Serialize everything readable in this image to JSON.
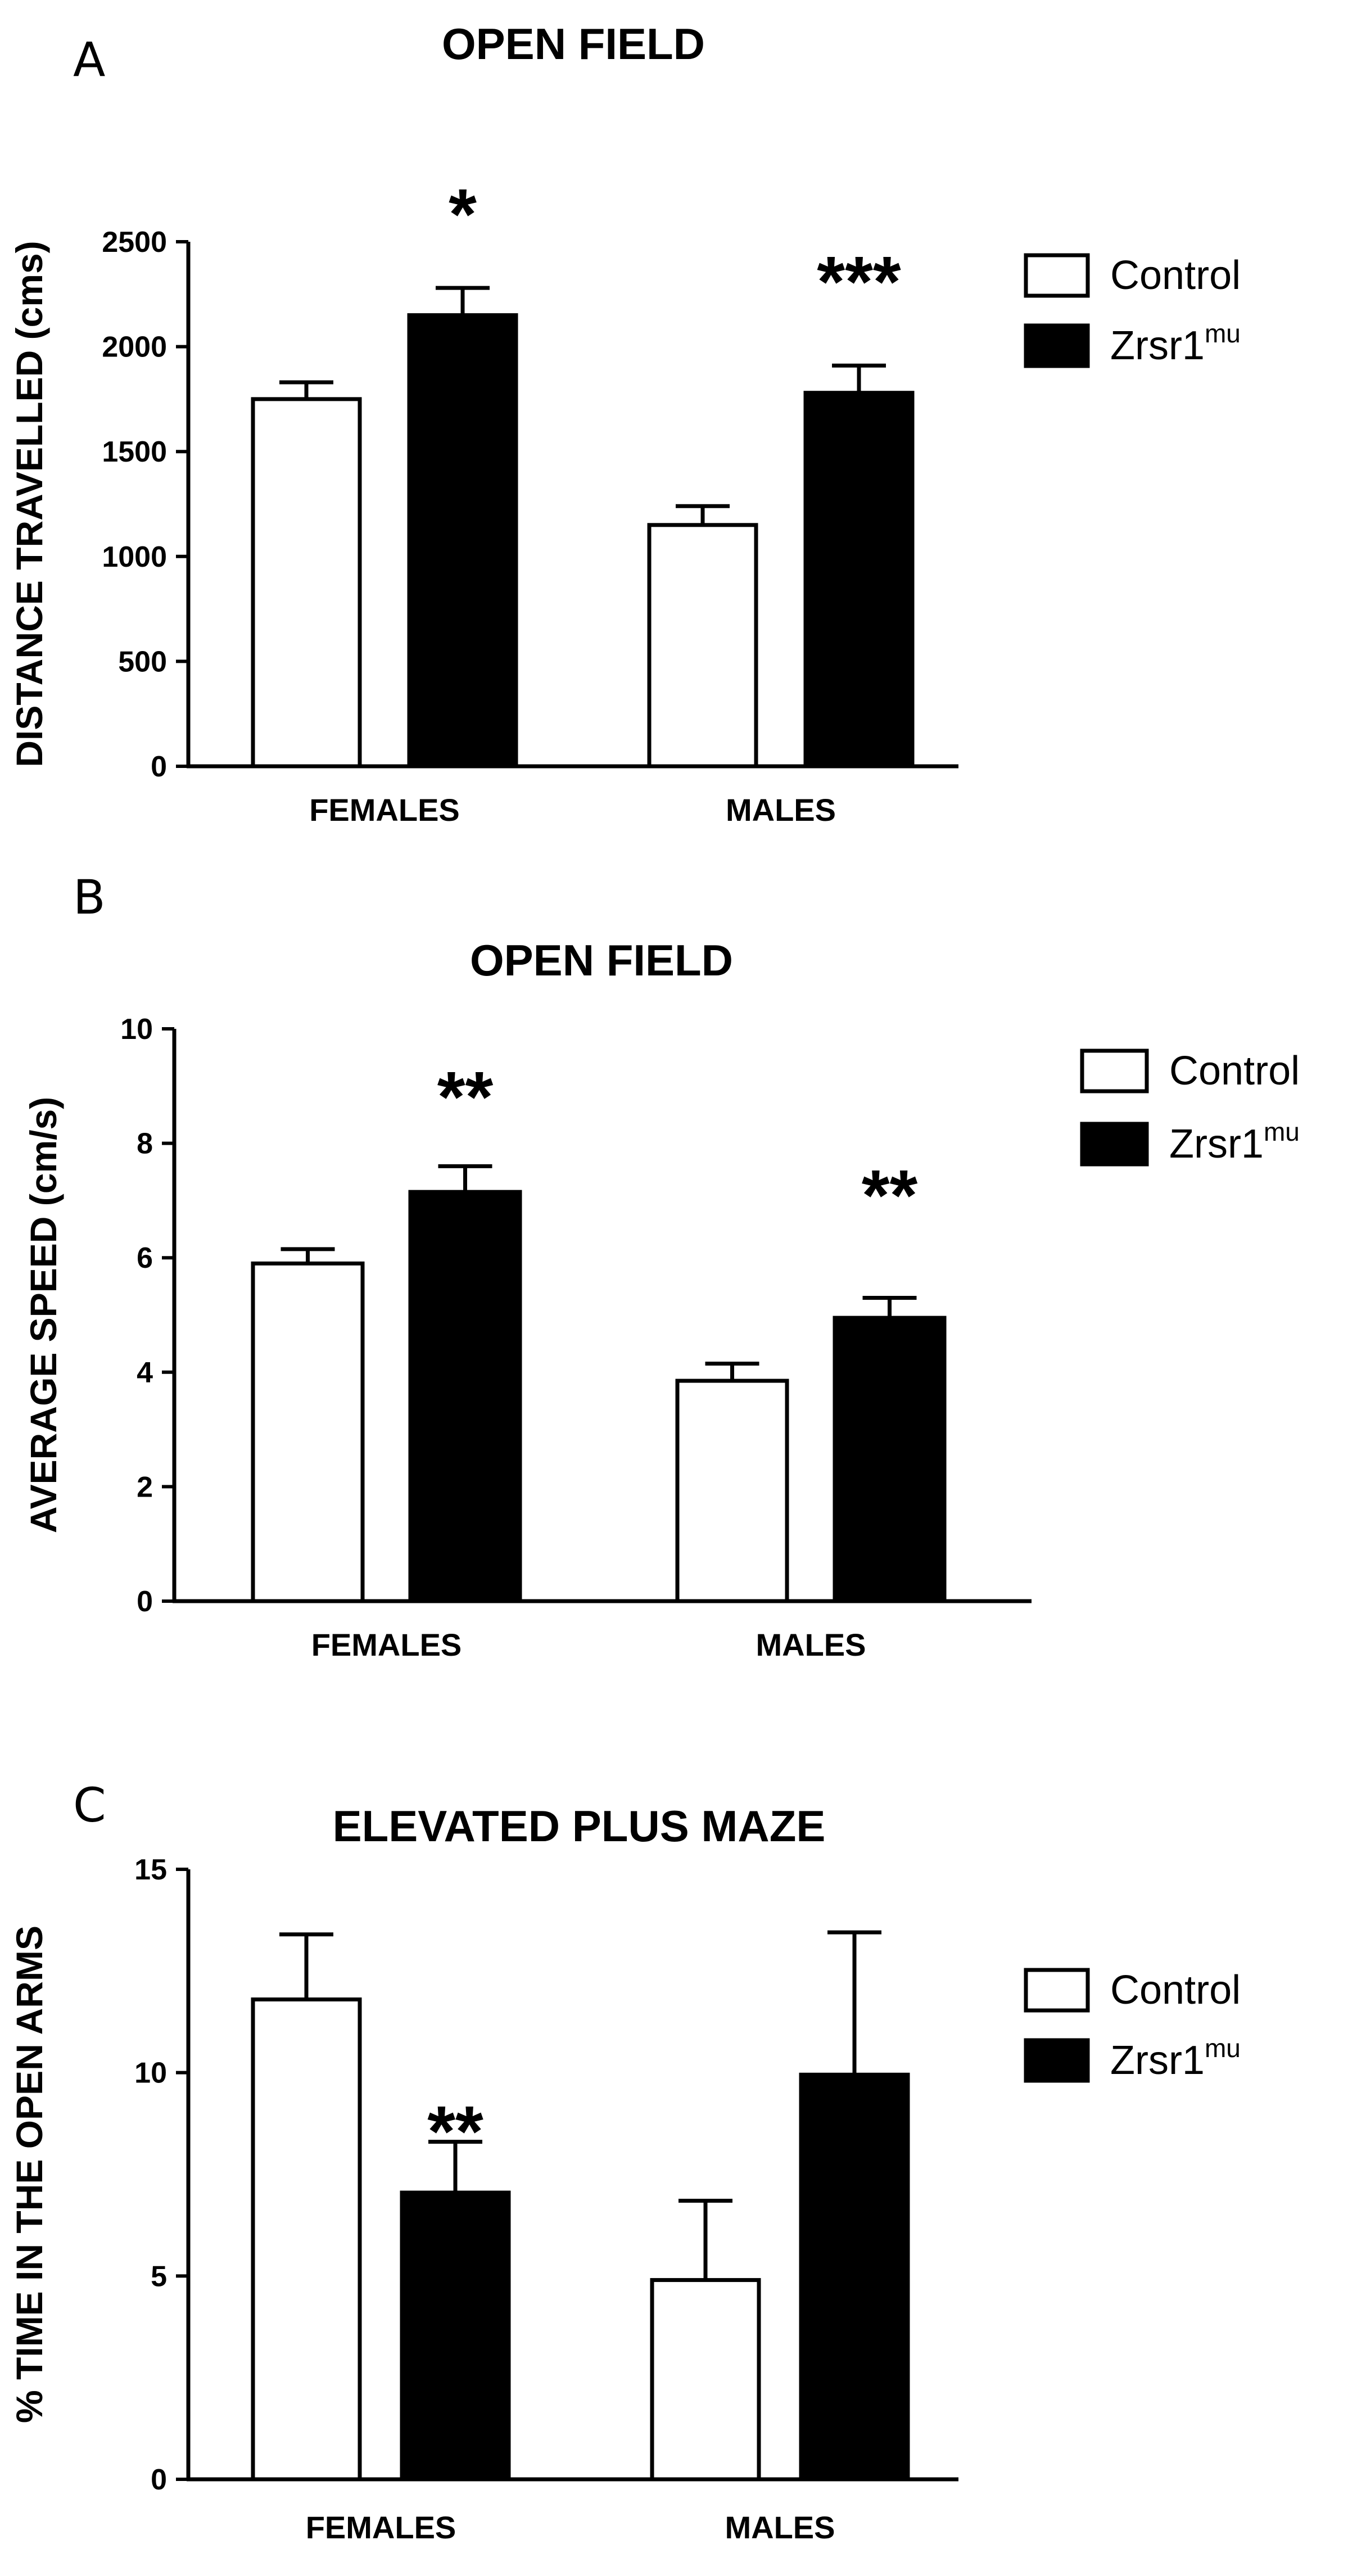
{
  "colors": {
    "control": "#ffffff",
    "mutant": "#000000",
    "stroke": "#000000"
  },
  "chart_data": [
    {
      "type": "bar",
      "panel": "A",
      "title": "OPEN FIELD",
      "ylabel": "DISTANCE TRAVELLED (cms)",
      "xlabel": "",
      "ylim": [
        0,
        2500
      ],
      "yticks": [
        0,
        500,
        1000,
        1500,
        2000,
        2500
      ],
      "categories": [
        "FEMALES",
        "MALES"
      ],
      "series": [
        {
          "name": "Control",
          "values": [
            1750,
            1150
          ],
          "errors": [
            80,
            90
          ]
        },
        {
          "name": "Zrsr1",
          "name_sup": "mu",
          "values": [
            2150,
            1780
          ],
          "errors": [
            130,
            130
          ]
        }
      ],
      "significance": [
        "*",
        "***"
      ],
      "legend_position": "top-right"
    },
    {
      "type": "bar",
      "panel": "B",
      "title": "OPEN FIELD",
      "ylabel": "AVERAGE SPEED (cm/s)",
      "xlabel": "",
      "ylim": [
        0,
        10
      ],
      "yticks": [
        0,
        2,
        4,
        6,
        8,
        10
      ],
      "categories": [
        "FEMALES",
        "MALES"
      ],
      "series": [
        {
          "name": "Control",
          "values": [
            5.9,
            3.85
          ],
          "errors": [
            0.25,
            0.3
          ]
        },
        {
          "name": "Zrsr1",
          "name_sup": "mu",
          "values": [
            7.15,
            4.95
          ],
          "errors": [
            0.45,
            0.35
          ]
        }
      ],
      "significance": [
        "**",
        "**"
      ],
      "legend_position": "top-right"
    },
    {
      "type": "bar",
      "panel": "C",
      "title": "ELEVATED PLUS MAZE",
      "ylabel": "% TIME IN THE OPEN ARMS",
      "xlabel": "",
      "ylim": [
        0,
        15
      ],
      "yticks": [
        0,
        5,
        10,
        15
      ],
      "categories": [
        "FEMALES",
        "MALES"
      ],
      "series": [
        {
          "name": "Control",
          "values": [
            11.8,
            4.9
          ],
          "errors": [
            1.6,
            1.95
          ]
        },
        {
          "name": "Zrsr1",
          "name_sup": "mu",
          "values": [
            7.05,
            9.95
          ],
          "errors": [
            1.25,
            3.5
          ]
        }
      ],
      "significance": [
        "**",
        ""
      ],
      "legend_position": "top-right"
    }
  ]
}
